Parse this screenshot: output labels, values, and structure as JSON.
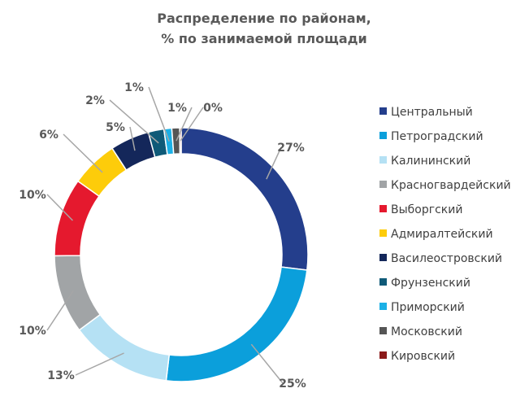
{
  "chart_data": {
    "type": "pie",
    "subtype": "donut",
    "title_line1": "Распределение по районам,",
    "title_line2": "% по занимаемой площади",
    "legend_position": "right",
    "categories": [
      "Центральный",
      "Петроградский",
      "Калининский",
      "Красногвардейский",
      "Выборгский",
      "Адмиралтейский",
      "Василеостровский",
      "Фрунзенский",
      "Приморский",
      "Московский",
      "Кировский"
    ],
    "values": [
      27,
      25,
      13,
      10,
      10,
      6,
      5,
      2,
      1,
      1,
      0
    ],
    "labels": [
      "27%",
      "25%",
      "13%",
      "10%",
      "10%",
      "6%",
      "5%",
      "2%",
      "1%",
      "1%",
      "0%"
    ],
    "colors": [
      "#243e8c",
      "#0b9fdb",
      "#b5e1f4",
      "#a1a4a6",
      "#e5192e",
      "#fdcc0a",
      "#14275a",
      "#0f5a78",
      "#1bb0e6",
      "#555555",
      "#8b1a1a"
    ]
  }
}
